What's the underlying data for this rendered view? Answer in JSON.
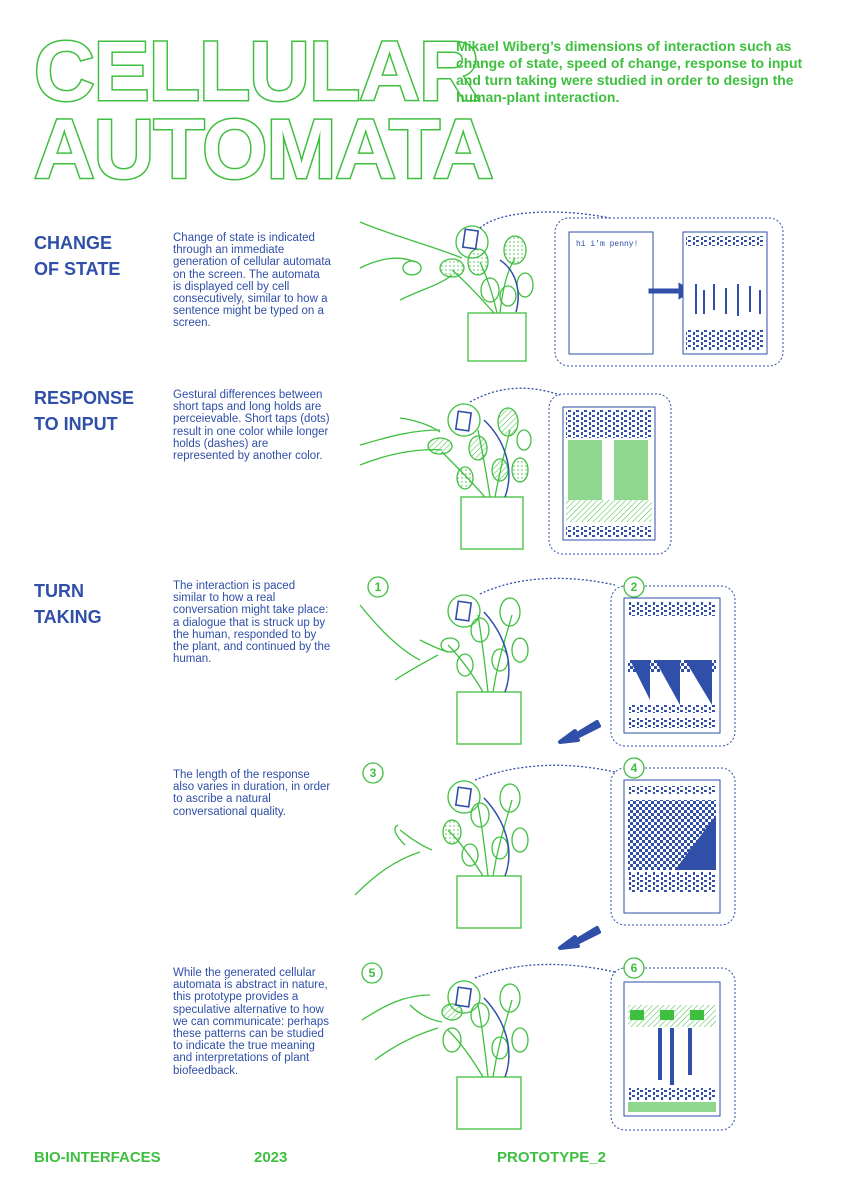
{
  "title": {
    "line1": "CELLULAR",
    "line2": "AUTOMATA"
  },
  "intro": "Mikael Wiberg’s dimensions of interaction such as change of state, speed of change, response to input and turn taking were studied in order to design the human-plant interaction.",
  "sections": [
    {
      "heading_line1": "CHANGE",
      "heading_line2": "OF STATE",
      "text": "Change of state is indicated through an immediate generation of cellular automata on the screen. The automata is displayed cell by cell consecutively, similar to how a sentence might be typed on a screen."
    },
    {
      "heading_line1": "RESPONSE",
      "heading_line2": "TO INPUT",
      "text": "Gestural differences between short taps and long holds are perceievable. Short taps (dots) result in one color while longer holds (dashes) are represented by another color."
    },
    {
      "heading_line1": "TURN",
      "heading_line2": "TAKING",
      "text": "The interaction is paced similar to how a real conversation might take place: a dialogue that is struck up by the human, responded to by the plant, and continued by the human."
    }
  ],
  "text_duration": "The length of the response also varies in duration, in order to ascribe a natural conversational quality.",
  "text_conclusion": "While the generated cellular automata is abstract in nature, this prototype provides a speculative alternative to how we can communicate: perhaps these patterns can be studied to indicate the true meaning and interpretations of plant biofeedback.",
  "screen_message": "hi i'm penny!",
  "steps": [
    "1",
    "2",
    "3",
    "4",
    "5",
    "6"
  ],
  "footer": {
    "left": "BIO-INTERFACES",
    "year": "2023",
    "right": "PROTOTYPE_2"
  },
  "colors": {
    "green": "#3fbf3f",
    "blue": "#2f4fa8",
    "light_green": "#8fd68f"
  },
  "icons": [
    "plant-in-pot",
    "hand",
    "sensor-tag",
    "arrow-right",
    "arrow-down-left",
    "automata-screen"
  ]
}
